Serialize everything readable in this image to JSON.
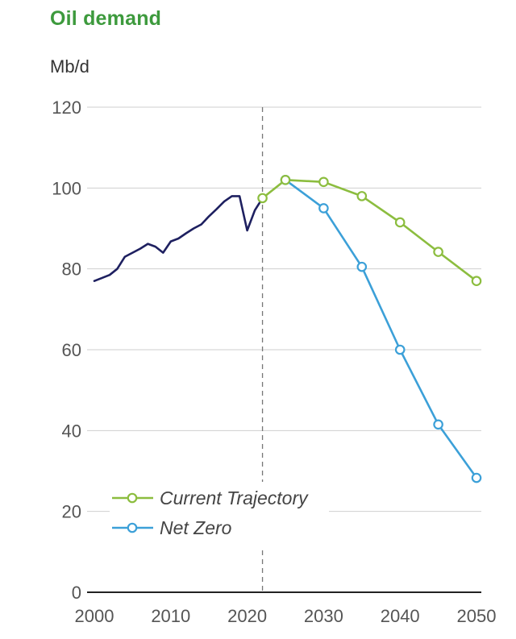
{
  "header": {
    "title": "Oil demand",
    "unit": "Mb/d"
  },
  "chart_data": {
    "type": "line",
    "title": "Oil demand",
    "ylabel": "Mb/d",
    "xlabel": "",
    "xlim": [
      2000,
      2050
    ],
    "ylim": [
      0,
      120
    ],
    "x_ticks": [
      2000,
      2010,
      2020,
      2030,
      2040,
      2050
    ],
    "y_ticks": [
      0,
      20,
      40,
      60,
      80,
      100,
      120
    ],
    "grid": "horizontal",
    "reference_line": {
      "x": 2022,
      "style": "dashed"
    },
    "legend_position": "bottom-left",
    "series": [
      {
        "color": "#1e2060",
        "markers": false,
        "points": [
          [
            2000,
            77
          ],
          [
            2002,
            78.5
          ],
          [
            2003,
            80
          ],
          [
            2004,
            83
          ],
          [
            2005,
            84
          ],
          [
            2006,
            85
          ],
          [
            2007,
            86.2
          ],
          [
            2008,
            85.5
          ],
          [
            2009,
            84
          ],
          [
            2010,
            86.8
          ],
          [
            2011,
            87.5
          ],
          [
            2012,
            88.8
          ],
          [
            2013,
            90
          ],
          [
            2014,
            91
          ],
          [
            2015,
            93
          ],
          [
            2016,
            94.8
          ],
          [
            2017,
            96.7
          ],
          [
            2018,
            98
          ],
          [
            2019,
            98
          ],
          [
            2020,
            89.5
          ],
          [
            2021,
            94.5
          ],
          [
            2022,
            97.5
          ]
        ]
      },
      {
        "name": "Current Trajectory",
        "color": "#8cbd3f",
        "markers": true,
        "points": [
          [
            2022,
            97.5
          ],
          [
            2025,
            102
          ],
          [
            2030,
            101.5
          ],
          [
            2035,
            98
          ],
          [
            2040,
            91.5
          ],
          [
            2045,
            84.2
          ],
          [
            2050,
            77
          ]
        ]
      },
      {
        "name": "Net Zero",
        "color": "#3ca0d8",
        "markers": true,
        "points": [
          [
            2025,
            102
          ],
          [
            2030,
            95
          ],
          [
            2035,
            80.5
          ],
          [
            2040,
            60
          ],
          [
            2045,
            41.5
          ],
          [
            2050,
            28.3
          ]
        ]
      }
    ]
  }
}
